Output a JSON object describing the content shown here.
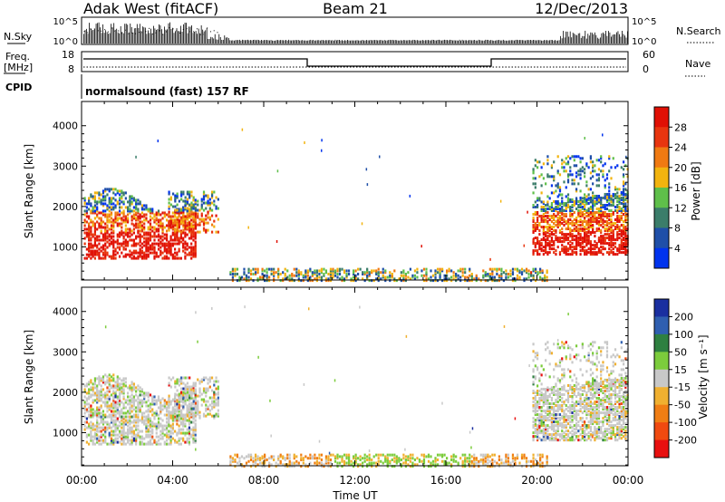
{
  "header": {
    "left": "Adak West (fitACF)",
    "center": "Beam 21",
    "right": "12/Dec/2013"
  },
  "labels": {
    "nsky": "N.Sky",
    "nsearch": "N.Search",
    "freq_line1": "Freq.",
    "freq_line2": "[MHz]",
    "nave": "Nave",
    "cpid": "CPID",
    "cpid_value": "normalsound (fast) 157 RF",
    "nsky_ticks": [
      "10^5",
      "10^0"
    ],
    "nsearch_ticks": [
      "10^5",
      "10^0"
    ],
    "freq_ticks": [
      "18",
      "8"
    ],
    "nave_ticks": [
      "60",
      "0"
    ]
  },
  "chart_data": [
    {
      "type": "heatmap",
      "name": "power",
      "ylabel": "Slant Range [km]",
      "ylim": [
        180,
        4600
      ],
      "yticks": [
        "1000",
        "2000",
        "3000",
        "4000"
      ],
      "colorbar_label": "Power [dB]",
      "colorbar_ticks": [
        "4",
        "8",
        "12",
        "16",
        "20",
        "24",
        "28"
      ],
      "colors": [
        "#0033ee",
        "#1f4fa8",
        "#3b7d6a",
        "#5fbf4a",
        "#f2b40f",
        "#f07a12",
        "#e8350f",
        "#e01005"
      ]
    },
    {
      "type": "heatmap",
      "name": "velocity",
      "ylabel": "Slant Range [km]",
      "ylim": [
        180,
        4600
      ],
      "yticks": [
        "1000",
        "2000",
        "3000",
        "4000"
      ],
      "colorbar_label": "Velocity [m s⁻¹]",
      "colorbar_ticks": [
        "200",
        "100",
        "50",
        "15",
        "-15",
        "-50",
        "-100",
        "-200"
      ],
      "colors": [
        "#1a2fa0",
        "#2f5fb0",
        "#2e8040",
        "#7ccc3c",
        "#c8c8c8",
        "#f0b030",
        "#f07e14",
        "#f04a10",
        "#e81010"
      ]
    }
  ],
  "xaxis": {
    "label": "Time UT",
    "ticks": [
      "00:00",
      "04:00",
      "08:00",
      "12:00",
      "16:00",
      "20:00",
      "00:00"
    ]
  }
}
